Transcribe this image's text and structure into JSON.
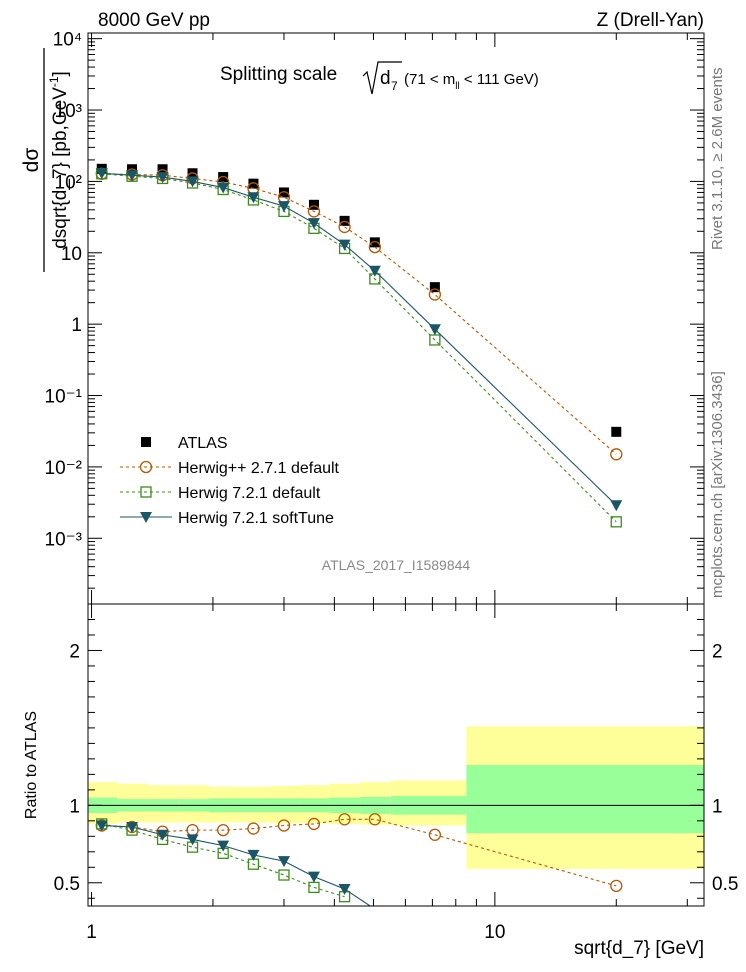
{
  "header": {
    "left": "8000 GeV pp",
    "right": "Z (Drell-Yan)"
  },
  "side_labels": {
    "rivet": "Rivet 3.1.10, ≥ 2.6M events",
    "mcplots": "mcplots.cern.ch [arXiv:1306.3436]"
  },
  "chart_data": [
    {
      "type": "scatter",
      "panel": "main",
      "title": "Splitting scale",
      "title_symbol": "√d₇",
      "title_range": "(71 < m_ll < 111 GeV)",
      "ylabel": "dσ / dsqrt{d_7} [pb,GeV⁻¹]",
      "yscale": "log",
      "xscale": "log",
      "xlim": [
        0.98,
        33
      ],
      "ylim": [
        0.00012,
        12000
      ],
      "y_ticks": [
        "10⁻³",
        "10⁻²",
        "10⁻¹",
        "1",
        "10",
        "10²",
        "10³",
        "10⁴"
      ],
      "analysis_label": "ATLAS_2017_I1589844",
      "legend_position": "lower-left",
      "x": [
        1.06,
        1.26,
        1.5,
        1.78,
        2.12,
        2.52,
        3.0,
        3.56,
        4.24,
        5.04,
        7.1,
        20.0
      ],
      "series": [
        {
          "name": "ATLAS",
          "color": "#000000",
          "marker": "filled-square",
          "values": [
            150,
            148,
            148,
            130,
            115,
            93,
            70,
            47,
            28,
            14,
            3.3,
            0.031
          ]
        },
        {
          "name": "Herwig++ 2.7.1 default",
          "color": "#b35806",
          "marker": "open-circle",
          "line": "dashed",
          "values": [
            128,
            125,
            122,
            110,
            98,
            80,
            60,
            38,
            23,
            12,
            2.6,
            0.015
          ]
        },
        {
          "name": "Herwig 7.2.1 default",
          "color": "#3c8c1c",
          "marker": "open-square",
          "line": "dashed",
          "values": [
            128,
            118,
            110,
            95,
            77,
            55,
            38,
            22,
            11.5,
            4.3,
            0.6,
            0.0017
          ]
        },
        {
          "name": "Herwig 7.2.1 softTune",
          "color": "#1b5566",
          "marker": "filled-triangle-down",
          "line": "solid",
          "values": [
            130,
            122,
            115,
            100,
            82,
            60,
            45,
            26,
            13,
            5.6,
            0.85,
            0.0029
          ]
        }
      ]
    },
    {
      "type": "line",
      "panel": "ratio",
      "ylabel": "Ratio to ATLAS",
      "xlabel": "sqrt{d_7} [GeV]",
      "xscale": "log",
      "xlim": [
        0.98,
        33
      ],
      "ylim": [
        0.35,
        2.3
      ],
      "y_ticks": [
        "0.5",
        "1",
        "2"
      ],
      "x_ticks": [
        "1",
        "10"
      ],
      "bands": {
        "bin_edges": [
          0.98,
          1.16,
          1.38,
          1.64,
          1.95,
          2.32,
          2.76,
          3.28,
          3.9,
          4.64,
          5.52,
          8.5,
          33
        ],
        "stat": [
          [
            0.95,
            1.05
          ],
          [
            0.96,
            1.04
          ],
          [
            0.96,
            1.04
          ],
          [
            0.96,
            1.04
          ],
          [
            0.955,
            1.045
          ],
          [
            0.955,
            1.045
          ],
          [
            0.955,
            1.045
          ],
          [
            0.955,
            1.045
          ],
          [
            0.95,
            1.05
          ],
          [
            0.945,
            1.055
          ],
          [
            0.94,
            1.06
          ],
          [
            0.82,
            1.26
          ]
        ],
        "total": [
          [
            0.88,
            1.15
          ],
          [
            0.89,
            1.14
          ],
          [
            0.89,
            1.13
          ],
          [
            0.89,
            1.13
          ],
          [
            0.89,
            1.12
          ],
          [
            0.89,
            1.12
          ],
          [
            0.885,
            1.125
          ],
          [
            0.885,
            1.13
          ],
          [
            0.88,
            1.14
          ],
          [
            0.875,
            1.15
          ],
          [
            0.87,
            1.16
          ],
          [
            0.59,
            1.51
          ]
        ]
      },
      "series": [
        {
          "name": "Herwig++ 2.7.1 default",
          "color": "#b35806",
          "marker": "open-circle",
          "line": "dashed",
          "values": [
            0.87,
            0.86,
            0.83,
            0.84,
            0.84,
            0.85,
            0.87,
            0.88,
            0.91,
            0.91,
            0.81,
            0.48
          ]
        },
        {
          "name": "Herwig 7.2.1 default",
          "color": "#3c8c1c",
          "marker": "open-square",
          "line": "dashed",
          "values": [
            0.88,
            0.84,
            0.78,
            0.73,
            0.69,
            0.62,
            0.55,
            0.47,
            0.41
          ]
        },
        {
          "name": "Herwig 7.2.1 softTune",
          "color": "#1b5566",
          "marker": "filled-triangle-down",
          "line": "solid",
          "values": [
            0.87,
            0.86,
            0.81,
            0.78,
            0.74,
            0.68,
            0.64,
            0.54,
            0.46,
            0.33
          ]
        }
      ]
    }
  ]
}
